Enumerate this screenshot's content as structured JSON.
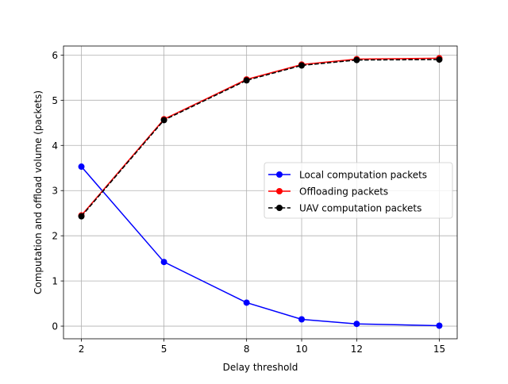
{
  "chart_data": {
    "type": "line",
    "xlabel": "Delay threshold",
    "ylabel": "Computation and offload volume (packets)",
    "x": [
      2,
      5,
      8,
      10,
      12,
      15
    ],
    "xticks": [
      2,
      5,
      8,
      10,
      12,
      15
    ],
    "yticks": [
      0,
      1,
      2,
      3,
      4,
      5,
      6
    ],
    "xlim": [
      1.35,
      15.65
    ],
    "ylim": [
      -0.28,
      6.2
    ],
    "grid": true,
    "legend_position": "center-right",
    "series": [
      {
        "name": "Local computation packets",
        "values": [
          3.53,
          1.42,
          0.52,
          0.15,
          0.05,
          0.01
        ],
        "color": "#0000ff",
        "linestyle": "solid",
        "marker": "circle"
      },
      {
        "name": "Offloading packets",
        "values": [
          2.45,
          4.58,
          5.46,
          5.79,
          5.91,
          5.93
        ],
        "color": "#ff0000",
        "linestyle": "solid",
        "marker": "circle"
      },
      {
        "name": "UAV computation packets",
        "values": [
          2.43,
          4.56,
          5.44,
          5.77,
          5.89,
          5.9
        ],
        "color": "#000000",
        "linestyle": "dashed",
        "marker": "circle"
      }
    ]
  }
}
